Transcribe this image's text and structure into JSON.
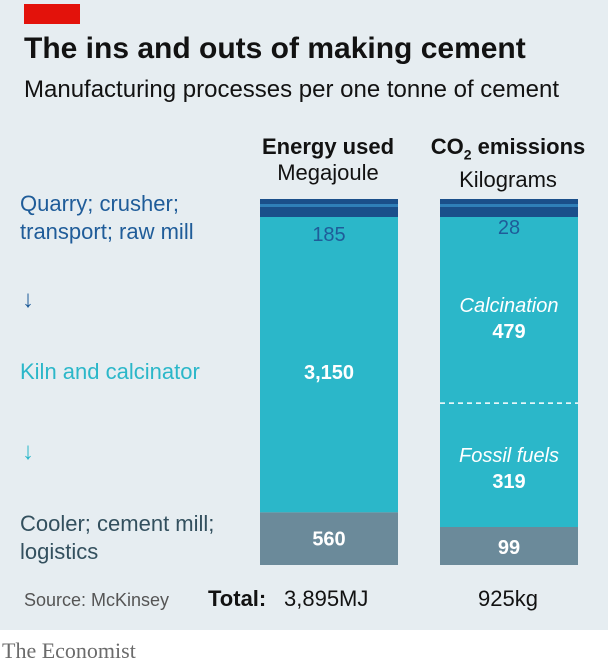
{
  "header": {
    "title": "The ins and outs of making cement",
    "subtitle": "Manufacturing processes per one tonne of cement"
  },
  "stages": [
    {
      "line1": "Quarry; crusher;",
      "line2": "transport; raw mill",
      "color": "#1f5c99"
    },
    {
      "line1": "Kiln and calcinator",
      "line2": "",
      "color": "#2bb7c9"
    },
    {
      "line1": "Cooler; cement mill;",
      "line2": "logistics",
      "color": "#33505e"
    }
  ],
  "arrows": [
    "↓",
    "↓"
  ],
  "columns": {
    "energy": {
      "title": "Energy used",
      "unit": "Megajoule"
    },
    "co2": {
      "title_prefix": "CO",
      "title_sub": "2",
      "title_suffix": " emissions",
      "unit": "Kilograms"
    }
  },
  "chart_data": {
    "type": "bar",
    "stacked": true,
    "colors": {
      "dark": "#1f5c99",
      "light": "#2bb7c9",
      "grey": "#6b8a9a",
      "top_stripe": "#1a4f8a"
    },
    "energy": {
      "segments": [
        {
          "stage": "Quarry; crusher; transport; raw mill",
          "value": 185,
          "label": "185",
          "color": "#1f5c99"
        },
        {
          "stage": "Kiln and calcinator",
          "value": 3150,
          "label": "3,150",
          "color": "#2bb7c9"
        },
        {
          "stage": "Cooler; cement mill; logistics",
          "value": 560,
          "label": "560",
          "color": "#6b8a9a"
        }
      ],
      "total_label": "3,895MJ"
    },
    "co2": {
      "segments": [
        {
          "stage": "Quarry; crusher; transport; raw mill",
          "value": 28,
          "label": "28",
          "color": "#1f5c99"
        },
        {
          "stage": "Calcination",
          "value": 479,
          "label": "479",
          "sublabel": "Calcination",
          "color": "#2bb7c9"
        },
        {
          "stage": "Fossil fuels",
          "value": 319,
          "label": "319",
          "sublabel": "Fossil fuels",
          "color": "#2bb7c9"
        },
        {
          "stage": "Cooler; cement mill; logistics",
          "value": 99,
          "label": "99",
          "color": "#6b8a9a"
        }
      ],
      "total_label": "925kg"
    }
  },
  "footer": {
    "total_prefix": "Total:",
    "source": "Source: McKinsey",
    "brand": "The Economist"
  }
}
